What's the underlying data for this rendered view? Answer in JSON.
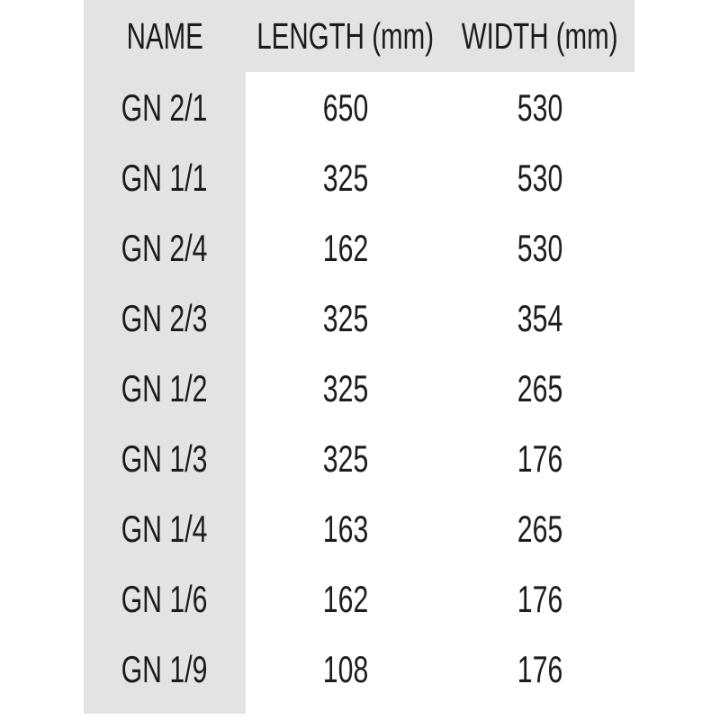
{
  "colors": {
    "background": "#ffffff",
    "band": "#e4e3e1",
    "text": "#1c1c1c"
  },
  "table": {
    "columns": [
      {
        "key": "name",
        "label": "NAME"
      },
      {
        "key": "length",
        "label": "LENGTH (mm)"
      },
      {
        "key": "width",
        "label": "WIDTH (mm)"
      }
    ],
    "rows": [
      {
        "name": "GN 2/1",
        "length": "650",
        "width": "530"
      },
      {
        "name": "GN 1/1",
        "length": "325",
        "width": "530"
      },
      {
        "name": "GN 2/4",
        "length": "162",
        "width": "530"
      },
      {
        "name": "GN 2/3",
        "length": "325",
        "width": "354"
      },
      {
        "name": "GN 1/2",
        "length": "325",
        "width": "265"
      },
      {
        "name": "GN 1/3",
        "length": "325",
        "width": "176"
      },
      {
        "name": "GN 1/4",
        "length": "163",
        "width": "265"
      },
      {
        "name": "GN 1/6",
        "length": "162",
        "width": "176"
      },
      {
        "name": "GN 1/9",
        "length": "108",
        "width": "176"
      }
    ]
  },
  "chart_data": {
    "type": "table",
    "title": "",
    "columns": [
      "NAME",
      "LENGTH (mm)",
      "WIDTH (mm)"
    ],
    "rows": [
      [
        "GN 2/1",
        650,
        530
      ],
      [
        "GN 1/1",
        325,
        530
      ],
      [
        "GN 2/4",
        162,
        530
      ],
      [
        "GN 2/3",
        325,
        354
      ],
      [
        "GN 1/2",
        325,
        265
      ],
      [
        "GN 1/3",
        325,
        176
      ],
      [
        "GN 1/4",
        163,
        265
      ],
      [
        "GN 1/6",
        162,
        176
      ],
      [
        "GN 1/9",
        108,
        176
      ]
    ],
    "layout_hints": {
      "header_background": "#e4e3e1",
      "name_column_background": "#e4e3e1",
      "body_background": "#ffffff",
      "grid": false
    }
  }
}
